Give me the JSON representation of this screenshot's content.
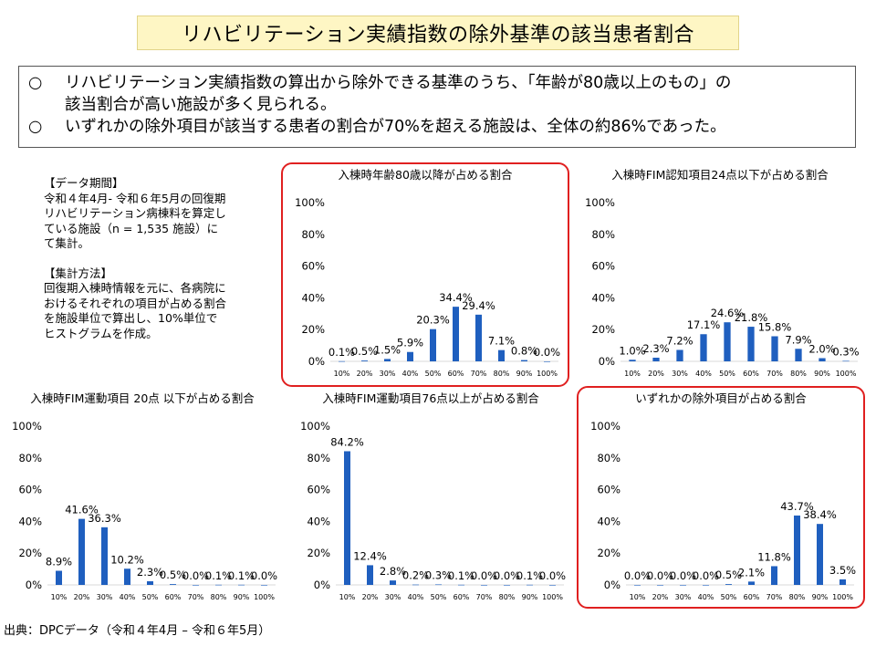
{
  "title": "リハビリテーション実績指数の除外基準の該当患者割合",
  "summary": {
    "bullet1_mark": "○",
    "bullet1_line1": "リハビリテーション実績指数の算出から除外できる基準のうち、「年齢が80歳以上のもの」の",
    "bullet1_line2": "該当割合が高い施設が多く見られる。",
    "bullet2_mark": "○",
    "bullet2_line1": "いずれかの除外項目が該当する患者の割合が70%を超える施設は、全体の約86%であった。"
  },
  "notes": {
    "period_heading": "【データ期間】",
    "period_lines": [
      "令和４年4月- 令和６年5月の回復期",
      "リハビリテーション病棟料を算定し",
      "ている施設（n = 1,535 施設）に",
      "て集計。"
    ],
    "method_heading": "【集計方法】",
    "method_lines": [
      "回復期入棟時情報を元に、各病院に",
      "おけるそれぞれの項目が占める割合",
      "を施設単位で算出し、10%単位で",
      "ヒストグラムを作成。"
    ]
  },
  "source": "出典：DPCデータ（令和４年4月 – 令和６年5月）",
  "colors": {
    "bar": "#1f5fbf",
    "highlight": "#e02020",
    "grid": "#d9d9d9"
  },
  "chart_data": [
    {
      "type": "bar",
      "title": "入棟時年齢80歳以降が占める割合",
      "categories": [
        "10%",
        "20%",
        "30%",
        "40%",
        "50%",
        "60%",
        "70%",
        "80%",
        "90%",
        "100%"
      ],
      "values": [
        0.1,
        0.5,
        1.5,
        5.9,
        20.3,
        34.4,
        29.4,
        7.1,
        0.8,
        0.0
      ],
      "value_labels": [
        "0.1%",
        "0.5%",
        "1.5%",
        "5.9%",
        "20.3%",
        "34.4%",
        "29.4%",
        "7.1%",
        "0.8%",
        "0.0%"
      ],
      "yticks": [
        "0%",
        "20%",
        "40%",
        "60%",
        "80%",
        "100%"
      ],
      "ylim": [
        0,
        100
      ],
      "highlighted": true
    },
    {
      "type": "bar",
      "title": "入棟時FIM認知項目24点以下が占める割合",
      "categories": [
        "10%",
        "20%",
        "30%",
        "40%",
        "50%",
        "60%",
        "70%",
        "80%",
        "90%",
        "100%"
      ],
      "values": [
        1.0,
        2.3,
        7.2,
        17.1,
        24.6,
        21.8,
        15.8,
        7.9,
        2.0,
        0.3
      ],
      "value_labels": [
        "1.0%",
        "2.3%",
        "7.2%",
        "17.1%",
        "24.6%",
        "21.8%",
        "15.8%",
        "7.9%",
        "2.0%",
        "0.3%"
      ],
      "yticks": [
        "0%",
        "20%",
        "40%",
        "60%",
        "80%",
        "100%"
      ],
      "ylim": [
        0,
        100
      ],
      "highlighted": false
    },
    {
      "type": "bar",
      "title": "入棟時FIM運動項目 20点 以下が占める割合",
      "categories": [
        "10%",
        "20%",
        "30%",
        "40%",
        "50%",
        "60%",
        "70%",
        "80%",
        "90%",
        "100%"
      ],
      "values": [
        8.9,
        41.6,
        36.3,
        10.2,
        2.3,
        0.5,
        0.0,
        0.1,
        0.1,
        0.0
      ],
      "value_labels": [
        "8.9%",
        "41.6%",
        "36.3%",
        "10.2%",
        "2.3%",
        "0.5%",
        "0.0%",
        "0.1%",
        "0.1%",
        "0.0%"
      ],
      "yticks": [
        "0%",
        "20%",
        "40%",
        "60%",
        "80%",
        "100%"
      ],
      "ylim": [
        0,
        100
      ],
      "highlighted": false
    },
    {
      "type": "bar",
      "title": "入棟時FIM運動項目76点以上が占める割合",
      "categories": [
        "10%",
        "20%",
        "30%",
        "40%",
        "50%",
        "60%",
        "70%",
        "80%",
        "90%",
        "100%"
      ],
      "values": [
        84.2,
        12.4,
        2.8,
        0.2,
        0.3,
        0.1,
        0.0,
        0.0,
        0.1,
        0.0
      ],
      "value_labels": [
        "84.2%",
        "12.4%",
        "2.8%",
        "0.2%",
        "0.3%",
        "0.1%",
        "0.0%",
        "0.0%",
        "0.1%",
        "0.0%"
      ],
      "yticks": [
        "0%",
        "20%",
        "40%",
        "60%",
        "80%",
        "100%"
      ],
      "ylim": [
        0,
        100
      ],
      "highlighted": false
    },
    {
      "type": "bar",
      "title": "いずれかの除外項目が占める割合",
      "categories": [
        "10%",
        "20%",
        "30%",
        "40%",
        "50%",
        "60%",
        "70%",
        "80%",
        "90%",
        "100%"
      ],
      "values": [
        0.0,
        0.0,
        0.0,
        0.0,
        0.5,
        2.1,
        11.8,
        43.7,
        38.4,
        3.5
      ],
      "value_labels": [
        "0.0%",
        "0.0%",
        "0.0%",
        "0.0%",
        "0.5%",
        "2.1%",
        "11.8%",
        "43.7%",
        "38.4%",
        "3.5%"
      ],
      "yticks": [
        "0%",
        "20%",
        "40%",
        "60%",
        "80%",
        "100%"
      ],
      "ylim": [
        0,
        100
      ],
      "highlighted": true
    }
  ]
}
